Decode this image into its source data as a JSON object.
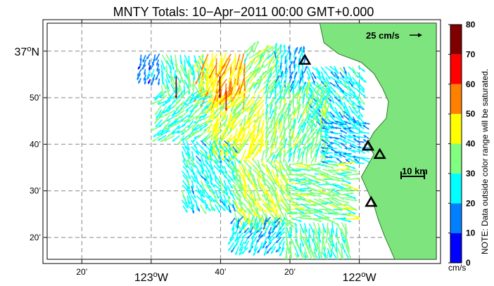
{
  "chart_data": {
    "type": "quiver-map",
    "title": "MNTY Totals: 10−Apr−2011 00:00 GMT+0.000",
    "lon_range": [
      -123.5,
      -121.63
    ],
    "lat_range": [
      36.255,
      37.1
    ],
    "x_ticks": [
      {
        "lon": -123.3333,
        "deg": "",
        "min": "20’"
      },
      {
        "lon": -123.0,
        "deg": "123",
        "min": "W"
      },
      {
        "lon": -122.6667,
        "deg": "",
        "min": "40’"
      },
      {
        "lon": -122.3333,
        "deg": "",
        "min": "20’"
      },
      {
        "lon": -122.0,
        "deg": "122",
        "min": "W"
      }
    ],
    "y_ticks": [
      {
        "lat": 37.0,
        "deg": "37",
        "min": "N"
      },
      {
        "lat": 36.8333,
        "deg": "",
        "min": "50’"
      },
      {
        "lat": 36.6667,
        "deg": "",
        "min": "40’"
      },
      {
        "lat": 36.5,
        "deg": "",
        "min": "30’"
      },
      {
        "lat": 36.3333,
        "deg": "",
        "min": "20’"
      }
    ],
    "grid": true,
    "reference_vector": {
      "label": "25 cm/s",
      "speed": 25
    },
    "scale_bar": {
      "label": "10 km",
      "km": 10
    },
    "stations": [
      {
        "lon": -122.2617,
        "lat": 36.967
      },
      {
        "lon": -121.9583,
        "lat": 36.6597
      },
      {
        "lon": -121.9017,
        "lat": 36.6301
      },
      {
        "lon": -121.9433,
        "lat": 36.4587
      }
    ],
    "colorbar": {
      "label": "cm/s",
      "min": 0,
      "max": 80,
      "ticks": [
        0,
        10,
        20,
        30,
        40,
        50,
        60,
        70,
        80
      ],
      "colors": [
        "#0000ff",
        "#0080ff",
        "#00ffff",
        "#80ff80",
        "#ffff00",
        "#ff8000",
        "#ff0000",
        "#800000"
      ],
      "note": "NOTE: Data outside color range will be saturated."
    },
    "field_regions": [
      {
        "lon": [
          -123.05,
          -122.95
        ],
        "lat": [
          36.9,
          36.99
        ],
        "dir_deg": 200,
        "speed": 14
      },
      {
        "lon": [
          -122.95,
          -122.75
        ],
        "lat": [
          36.88,
          36.99
        ],
        "dir_deg": 165,
        "speed": 30
      },
      {
        "lon": [
          -122.75,
          -122.55
        ],
        "lat": [
          36.85,
          37.0
        ],
        "dir_deg": 195,
        "speed": 50
      },
      {
        "lon": [
          -122.55,
          -122.4
        ],
        "lat": [
          36.85,
          37.0
        ],
        "dir_deg": 40,
        "speed": 36
      },
      {
        "lon": [
          -122.4,
          -122.25
        ],
        "lat": [
          36.85,
          37.0
        ],
        "dir_deg": 10,
        "speed": 22
      },
      {
        "lon": [
          -122.25,
          -122.0
        ],
        "lat": [
          36.75,
          36.95
        ],
        "dir_deg": 140,
        "speed": 24
      },
      {
        "lon": [
          -122.95,
          -122.7
        ],
        "lat": [
          36.7,
          36.86
        ],
        "dir_deg": 230,
        "speed": 28
      },
      {
        "lon": [
          -122.7,
          -122.45
        ],
        "lat": [
          36.65,
          36.86
        ],
        "dir_deg": 210,
        "speed": 42
      },
      {
        "lon": [
          -122.45,
          -122.15
        ],
        "lat": [
          36.6,
          36.86
        ],
        "dir_deg": 20,
        "speed": 34
      },
      {
        "lon": [
          -122.15,
          -121.95
        ],
        "lat": [
          36.6,
          36.75
        ],
        "dir_deg": 290,
        "speed": 20
      },
      {
        "lon": [
          -122.85,
          -122.6
        ],
        "lat": [
          36.45,
          36.68
        ],
        "dir_deg": 150,
        "speed": 26
      },
      {
        "lon": [
          -122.6,
          -122.35
        ],
        "lat": [
          36.4,
          36.62
        ],
        "dir_deg": 150,
        "speed": 38
      },
      {
        "lon": [
          -122.35,
          -122.05
        ],
        "lat": [
          36.4,
          36.6
        ],
        "dir_deg": 100,
        "speed": 34
      },
      {
        "lon": [
          -122.6,
          -122.35
        ],
        "lat": [
          36.3,
          36.42
        ],
        "dir_deg": 210,
        "speed": 22
      },
      {
        "lon": [
          -122.35,
          -122.05
        ],
        "lat": [
          36.28,
          36.4
        ],
        "dir_deg": 170,
        "speed": 32
      }
    ],
    "highlight_vectors": [
      {
        "lon": -122.88,
        "lat": 36.91,
        "dir_deg": 180,
        "speed": 72
      },
      {
        "lon": -122.67,
        "lat": 36.91,
        "dir_deg": 180,
        "speed": 70
      },
      {
        "lon": -122.64,
        "lat": 36.86,
        "dir_deg": 180,
        "speed": 66
      }
    ]
  }
}
